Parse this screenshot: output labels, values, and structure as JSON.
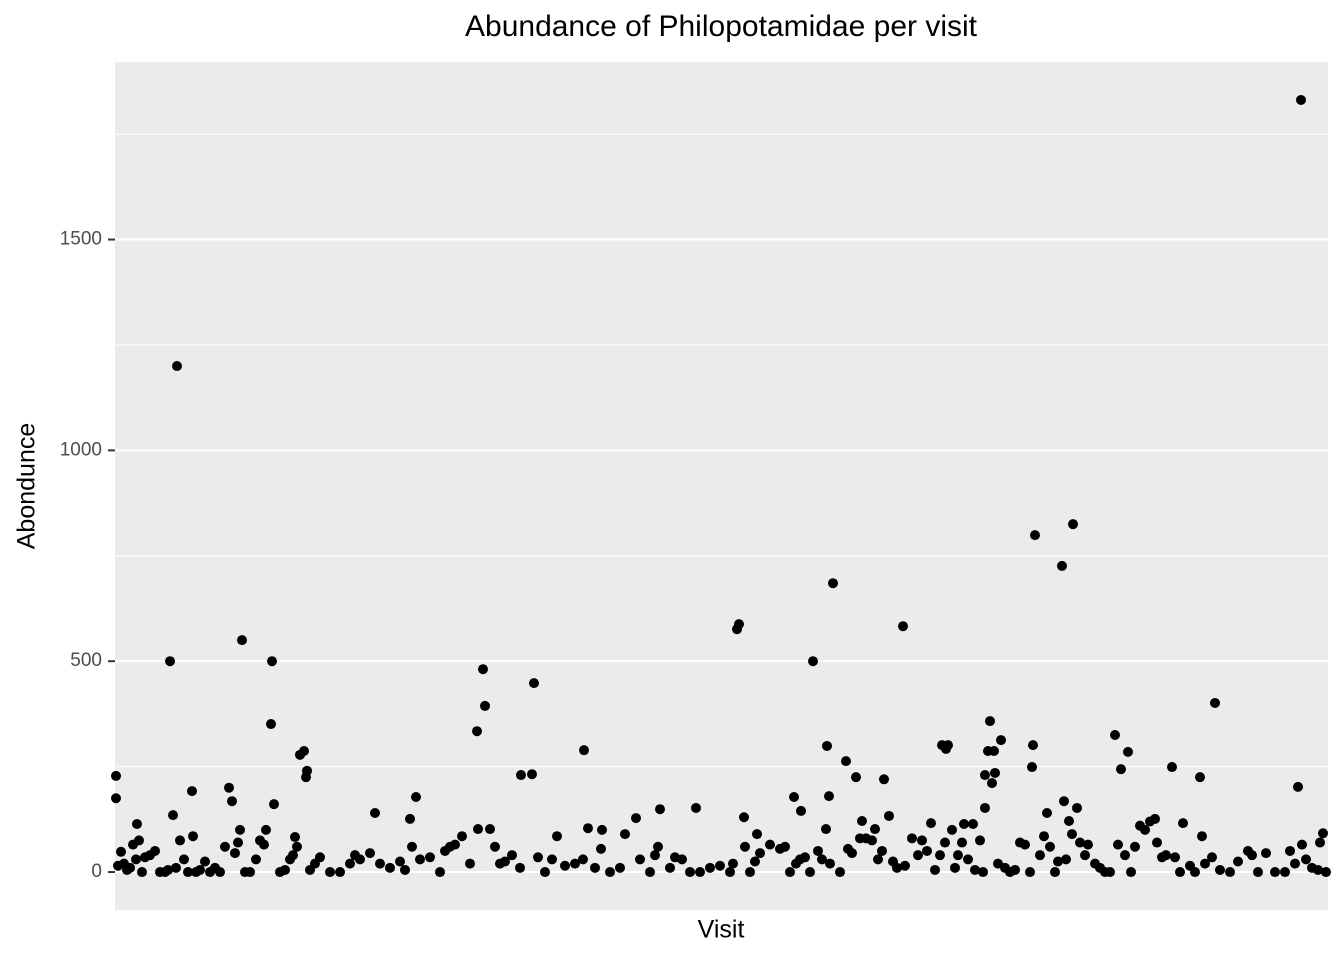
{
  "chart_data": {
    "type": "scatter",
    "title": "Abundance of Philopotamidae per visit",
    "x_label": "Visit",
    "y_label": "Abondunce",
    "color": "#000000",
    "panel_color": "#ebebeb",
    "grid": true,
    "minor_grid": true,
    "xlim": [
      0,
      1213
    ],
    "ylim": [
      -90,
      1921
    ],
    "yticks": [
      0,
      500,
      1000,
      1500
    ],
    "y_minor_ticks": [
      250,
      750,
      1250,
      1750
    ],
    "x": [
      1,
      1,
      62,
      55,
      58,
      77,
      114,
      117,
      127,
      157,
      156,
      159,
      185,
      189,
      192,
      191,
      362,
      368,
      370,
      406,
      417,
      419,
      469,
      622,
      624,
      679,
      686,
      698,
      712,
      714,
      718,
      731,
      741,
      788,
      769,
      827,
      831,
      833,
      870,
      875,
      873,
      879,
      877,
      880,
      886,
      870,
      920,
      918,
      917,
      947,
      958,
      1000,
      1006,
      1013,
      1057,
      1085,
      1100,
      1183,
      1186,
      22,
      78,
      125,
      151,
      180,
      260,
      295,
      301,
      347,
      363,
      375,
      473,
      487,
      521,
      545,
      581,
      629,
      642,
      711,
      747,
      760,
      774,
      816,
      849,
      858,
      932,
      949,
      962,
      954,
      1040,
      1068,
      1087,
      1208,
      3,
      6,
      9,
      12,
      15,
      18,
      21,
      24,
      27,
      30,
      35,
      40,
      45,
      50,
      53,
      61,
      65,
      69,
      73,
      81,
      85,
      90,
      95,
      100,
      105,
      110,
      120,
      123,
      130,
      135,
      141,
      145,
      149,
      165,
      170,
      175,
      178,
      182,
      195,
      200,
      205,
      215,
      225,
      235,
      240,
      245,
      255,
      265,
      275,
      285,
      290,
      297,
      305,
      315,
      325,
      330,
      335,
      340,
      355,
      380,
      385,
      390,
      397,
      405,
      423,
      430,
      437,
      442,
      450,
      460,
      468,
      480,
      486,
      495,
      505,
      510,
      525,
      535,
      540,
      543,
      555,
      560,
      567,
      575,
      585,
      595,
      605,
      615,
      618,
      630,
      635,
      640,
      645,
      655,
      665,
      670,
      675,
      681,
      685,
      690,
      695,
      703,
      707,
      715,
      725,
      733,
      737,
      745,
      751,
      757,
      763,
      767,
      778,
      782,
      790,
      797,
      803,
      807,
      812,
      820,
      825,
      830,
      837,
      840,
      843,
      847,
      853,
      860,
      865,
      868,
      883,
      890,
      895,
      900,
      905,
      910,
      915,
      925,
      929,
      935,
      940,
      943,
      951,
      957,
      965,
      970,
      973,
      980,
      985,
      990,
      995,
      1003,
      1010,
      1016,
      1020,
      1025,
      1030,
      1035,
      1042,
      1047,
      1051,
      1060,
      1065,
      1075,
      1080,
      1090,
      1097,
      1105,
      1115,
      1123,
      1133,
      1137,
      1143,
      1151,
      1160,
      1170,
      1175,
      1180,
      1187,
      1191,
      1197,
      1203,
      1205,
      1211
    ],
    "values": [
      228,
      175,
      1200,
      500,
      135,
      192,
      200,
      168,
      550,
      500,
      351,
      161,
      278,
      287,
      240,
      225,
      334,
      481,
      394,
      230,
      232,
      448,
      289,
      576,
      588,
      178,
      145,
      500,
      299,
      180,
      685,
      263,
      225,
      583,
      220,
      301,
      292,
      301,
      230,
      358,
      287,
      287,
      211,
      235,
      313,
      152,
      799,
      301,
      249,
      726,
      825,
      325,
      244,
      285,
      249,
      225,
      401,
      202,
      1831,
      114,
      85,
      100,
      100,
      83,
      140,
      126,
      178,
      85,
      102,
      102,
      104,
      100,
      128,
      149,
      152,
      130,
      90,
      102,
      121,
      102,
      133,
      116,
      114,
      114,
      140,
      168,
      152,
      121,
      126,
      116,
      85,
      92,
      15,
      48,
      20,
      5,
      10,
      65,
      30,
      75,
      0,
      35,
      40,
      50,
      0,
      0,
      5,
      10,
      75,
      30,
      0,
      0,
      5,
      25,
      0,
      10,
      0,
      60,
      45,
      70,
      0,
      0,
      30,
      75,
      65,
      0,
      5,
      30,
      40,
      60,
      5,
      20,
      35,
      0,
      0,
      20,
      40,
      30,
      45,
      20,
      10,
      25,
      5,
      60,
      30,
      35,
      0,
      50,
      60,
      65,
      20,
      60,
      20,
      25,
      40,
      10,
      35,
      0,
      30,
      85,
      15,
      20,
      30,
      10,
      55,
      0,
      10,
      90,
      30,
      0,
      40,
      60,
      10,
      35,
      30,
      0,
      0,
      10,
      15,
      0,
      20,
      60,
      0,
      25,
      45,
      65,
      55,
      60,
      0,
      20,
      30,
      35,
      0,
      50,
      30,
      20,
      0,
      55,
      45,
      80,
      80,
      75,
      30,
      50,
      25,
      10,
      15,
      80,
      40,
      75,
      50,
      5,
      40,
      70,
      100,
      10,
      40,
      70,
      30,
      5,
      75,
      0,
      20,
      10,
      0,
      5,
      70,
      65,
      0,
      40,
      85,
      60,
      0,
      25,
      30,
      90,
      70,
      40,
      65,
      20,
      10,
      0,
      0,
      65,
      40,
      0,
      60,
      110,
      100,
      120,
      70,
      35,
      40,
      35,
      0,
      15,
      0,
      20,
      35,
      5,
      0,
      25,
      50,
      40,
      0,
      45,
      0,
      0,
      50,
      20,
      65,
      30,
      10,
      5,
      70,
      0
    ]
  }
}
